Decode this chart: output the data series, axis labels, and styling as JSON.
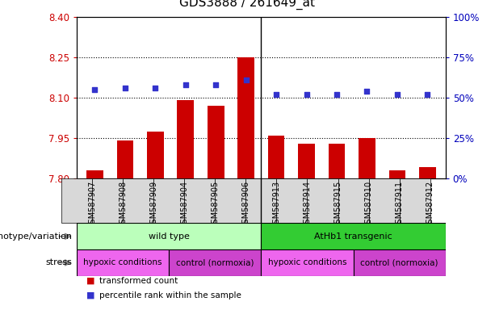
{
  "title": "GDS3888 / 261649_at",
  "samples": [
    "GSM587907",
    "GSM587908",
    "GSM587909",
    "GSM587904",
    "GSM587905",
    "GSM587906",
    "GSM587913",
    "GSM587914",
    "GSM587915",
    "GSM587910",
    "GSM587911",
    "GSM587912"
  ],
  "bar_values": [
    7.83,
    7.94,
    7.975,
    8.09,
    8.07,
    8.25,
    7.96,
    7.93,
    7.93,
    7.95,
    7.83,
    7.84
  ],
  "percentile_values": [
    55,
    56,
    56,
    58,
    58,
    61,
    52,
    52,
    52,
    54,
    52,
    52
  ],
  "bar_bottom": 7.8,
  "ylim_left": [
    7.8,
    8.4
  ],
  "ylim_right": [
    0,
    100
  ],
  "yticks_left": [
    7.8,
    7.95,
    8.1,
    8.25,
    8.4
  ],
  "yticks_right": [
    0,
    25,
    50,
    75,
    100
  ],
  "hlines": [
    7.95,
    8.1,
    8.25
  ],
  "bar_color": "#cc0000",
  "percentile_color": "#3333cc",
  "plot_bg_color": "#ffffff",
  "xtick_bg_color": "#d8d8d8",
  "genotype_groups": [
    {
      "label": "wild type",
      "start": 0,
      "end": 6,
      "color": "#bbffbb"
    },
    {
      "label": "AtHb1 transgenic",
      "start": 6,
      "end": 12,
      "color": "#33cc33"
    }
  ],
  "stress_groups": [
    {
      "label": "hypoxic conditions",
      "start": 0,
      "end": 3,
      "color": "#ee66ee"
    },
    {
      "label": "control (normoxia)",
      "start": 3,
      "end": 6,
      "color": "#cc44cc"
    },
    {
      "label": "hypoxic conditions",
      "start": 6,
      "end": 9,
      "color": "#ee66ee"
    },
    {
      "label": "control (normoxia)",
      "start": 9,
      "end": 12,
      "color": "#cc44cc"
    }
  ],
  "legend_items": [
    {
      "label": "transformed count",
      "color": "#cc0000"
    },
    {
      "label": "percentile rank within the sample",
      "color": "#3333cc"
    }
  ],
  "tick_color_left": "#cc0000",
  "tick_color_right": "#0000bb",
  "genotype_label": "genotype/variation",
  "stress_label": "stress",
  "title_fontsize": 11,
  "tick_fontsize": 8.5,
  "sample_fontsize": 7,
  "label_fontsize": 8,
  "row_label_fontsize": 8,
  "row_text_fontsize": 8
}
